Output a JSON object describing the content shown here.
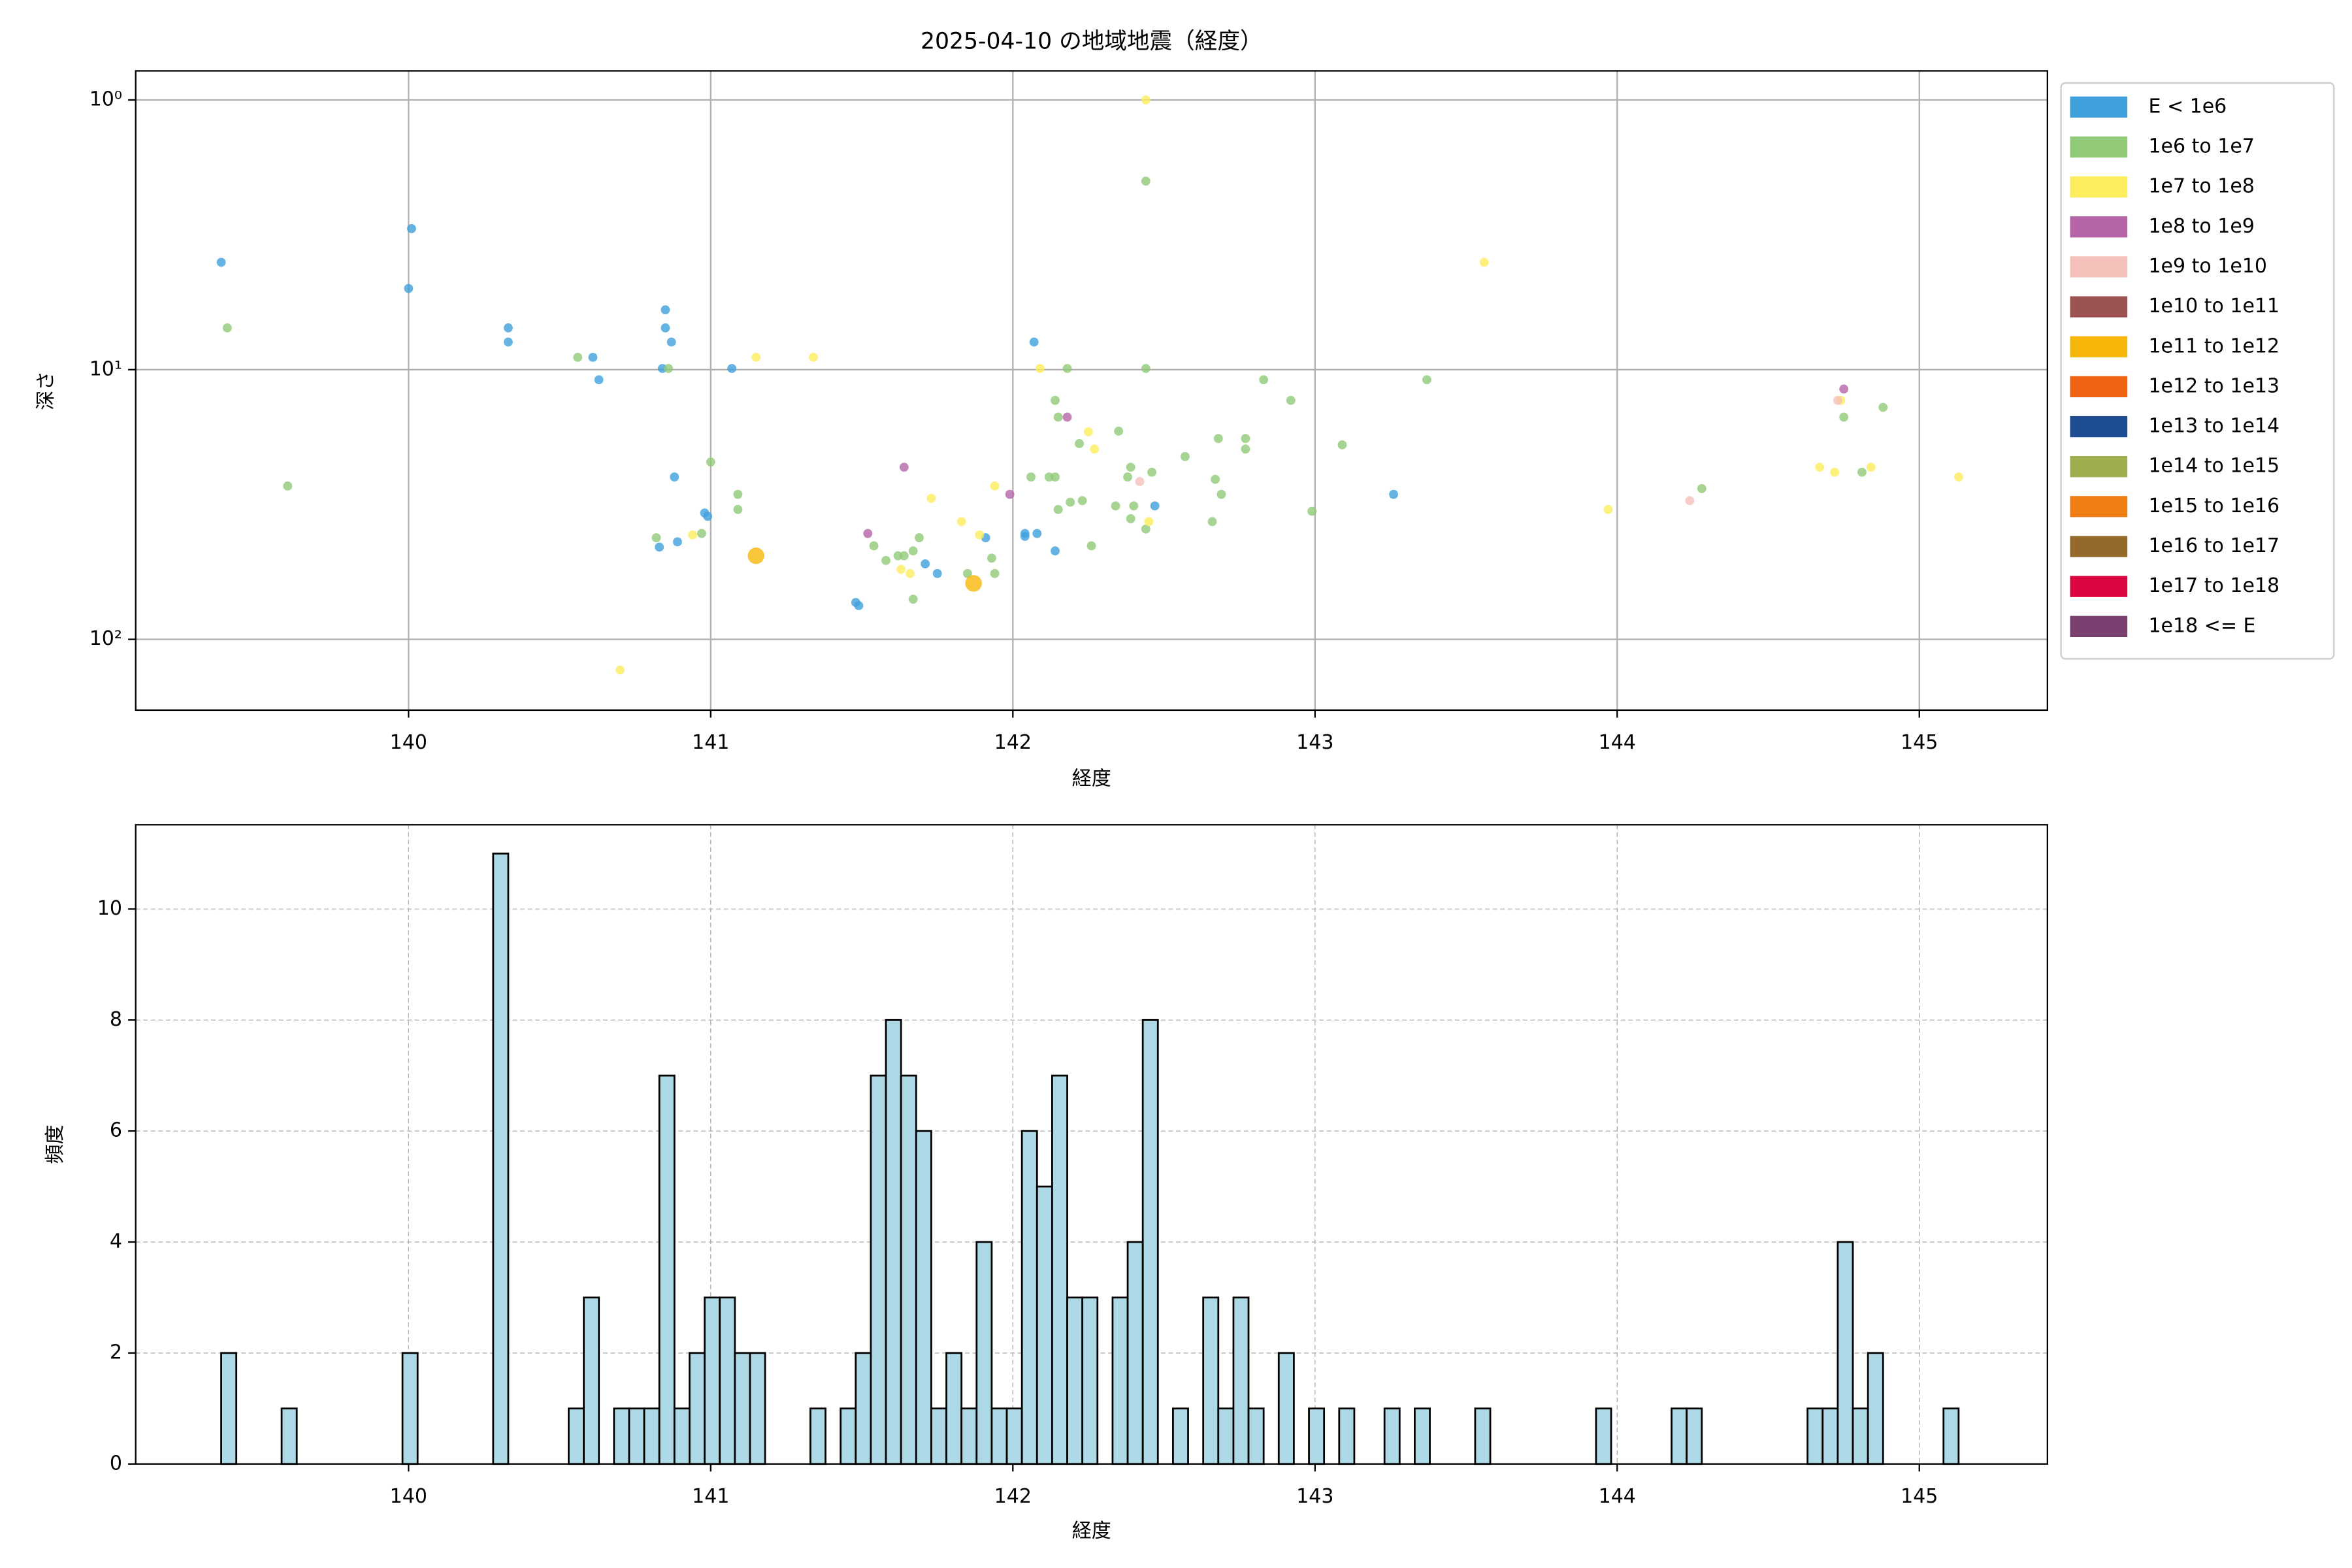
{
  "chart_data": [
    {
      "type": "scatter",
      "title": "2025-04-10 の地域地震（経度）",
      "x_label": "経度",
      "y_label": "深さ",
      "xlim": [
        139.097,
        145.424
      ],
      "xticks": [
        140,
        141,
        142,
        143,
        144,
        145
      ],
      "ylim": [
        0.78,
        183
      ],
      "y_inverted": true,
      "log_y": true,
      "yticks": [
        {
          "value": 1,
          "label": "10⁰"
        },
        {
          "value": 10,
          "label": "10¹"
        },
        {
          "value": 100,
          "label": "10²"
        }
      ],
      "grid": true,
      "legend": "outside-right",
      "series": [
        {
          "name": "E < 1e6",
          "color": "#3fa0dc",
          "marker_size": 3,
          "x": [
            139.38,
            140.01,
            140.0,
            140.33,
            140.33,
            140.61,
            140.63,
            140.85,
            140.85,
            140.87,
            140.84,
            141.07,
            140.88,
            140.83,
            140.89,
            140.98,
            140.99,
            141.48,
            141.49,
            141.71,
            141.75,
            141.91,
            142.04,
            142.04,
            142.08,
            142.07,
            142.14,
            142.47,
            143.26
          ],
          "values": [
            4.0,
            3.0,
            5.0,
            7.0,
            7.9,
            9.0,
            10.9,
            6.0,
            7.0,
            7.9,
            9.9,
            9.9,
            25,
            45.5,
            43.5,
            34,
            35,
            73,
            75,
            52.5,
            57,
            42,
            40.5,
            41.5,
            40.5,
            7.9,
            47,
            32,
            29
          ]
        },
        {
          "name": "1e6 to 1e7",
          "color": "#90c978",
          "marker_size": 3,
          "x": [
            139.4,
            139.6,
            140.56,
            140.86,
            140.82,
            140.97,
            141.0,
            141.09,
            141.09,
            141.54,
            141.58,
            141.62,
            141.64,
            141.69,
            141.67,
            141.67,
            141.85,
            141.93,
            141.94,
            142.06,
            142.12,
            142.14,
            142.14,
            142.15,
            142.18,
            142.15,
            142.19,
            142.23,
            142.22,
            142.26,
            142.35,
            142.38,
            142.34,
            142.39,
            142.4,
            142.39,
            142.44,
            142.44,
            142.44,
            142.46,
            142.57,
            142.68,
            142.66,
            142.67,
            142.69,
            142.77,
            142.77,
            142.83,
            142.92,
            142.99,
            143.09,
            143.37,
            144.28,
            144.75,
            144.88,
            144.81
          ],
          "values": [
            7.0,
            27,
            9.0,
            9.9,
            42,
            40.5,
            22,
            29,
            33,
            45,
            51,
            49,
            49,
            42,
            47,
            71,
            57,
            50,
            57,
            25,
            25,
            25,
            13,
            15,
            9.9,
            33,
            31,
            30.6,
            18.8,
            45,
            16.9,
            25,
            32,
            23,
            32,
            35.7,
            39,
            2.0,
            9.9,
            24,
            21,
            18,
            36.6,
            25.5,
            29,
            18,
            19.7,
            10.9,
            13,
            33.5,
            19,
            10.9,
            27.6,
            15,
            13.8,
            24
          ]
        },
        {
          "name": "1e7 to 1e8",
          "color": "#fdec5c",
          "marker_size": 3,
          "x": [
            142.44,
            143.56,
            141.15,
            141.34,
            142.09,
            142.25,
            142.27,
            141.94,
            141.73,
            141.83,
            141.89,
            141.66,
            141.63,
            140.7,
            140.94,
            142.45,
            143.97,
            144.67,
            144.72,
            144.84,
            144.74,
            145.13
          ],
          "values": [
            1.0,
            4.0,
            9.0,
            9.0,
            9.9,
            17,
            19.7,
            27,
            30,
            36.6,
            41,
            57,
            55,
            130,
            41,
            36.6,
            33,
            23,
            24,
            23,
            13,
            25
          ]
        },
        {
          "name": "1e8 to 1e9",
          "color": "#b565a7",
          "marker_size": 3,
          "x": [
            144.75,
            142.18,
            141.64,
            141.99,
            141.52
          ],
          "values": [
            11.8,
            15,
            23,
            29,
            40.5
          ]
        },
        {
          "name": "1e9 to 1e10",
          "color": "#f5c1bb",
          "marker_size": 3,
          "x": [
            144.73,
            142.42,
            144.24
          ],
          "values": [
            13,
            26,
            30.6
          ]
        },
        {
          "name": "1e10 to 1e11",
          "color": "#9c5351",
          "marker_size": 3,
          "x": [],
          "values": []
        },
        {
          "name": "1e11 to 1e12",
          "color": "#f6b60a",
          "marker_size": 5.5,
          "x": [
            141.15,
            141.87
          ],
          "values": [
            49,
            62
          ]
        },
        {
          "name": "1e12 to 1e13",
          "color": "#ee6311",
          "marker_size": 3,
          "x": [],
          "values": []
        },
        {
          "name": "1e13 to 1e14",
          "color": "#1f4d94",
          "marker_size": 3,
          "x": [],
          "values": []
        },
        {
          "name": "1e14 to 1e15",
          "color": "#9fad4f",
          "marker_size": 3,
          "x": [],
          "values": []
        },
        {
          "name": "1e15 to 1e16",
          "color": "#ef7d12",
          "marker_size": 3,
          "x": [],
          "values": []
        },
        {
          "name": "1e16 to 1e17",
          "color": "#946a2b",
          "marker_size": 3,
          "x": [],
          "values": []
        },
        {
          "name": "1e17 to 1e18",
          "color": "#dc0640",
          "marker_size": 3,
          "x": [],
          "values": []
        },
        {
          "name": "1e18 <= E",
          "color": "#7a406f",
          "marker_size": 3,
          "x": [],
          "values": []
        }
      ]
    },
    {
      "type": "histogram",
      "x_label": "経度",
      "y_label": "頻度",
      "color": "#add8e6",
      "edgecolor": "#000000",
      "xlim": [
        139.097,
        145.424
      ],
      "xticks": [
        140,
        141,
        142,
        143,
        144,
        145
      ],
      "ylim": [
        0,
        11.52
      ],
      "yticks": [
        0,
        2,
        4,
        6,
        8,
        10
      ],
      "grid": true,
      "grid_style": "dashed",
      "bins": [
        139.38,
        139.43,
        139.48,
        139.53,
        139.58,
        139.63,
        139.68,
        139.73,
        139.78,
        139.83,
        139.88,
        139.93,
        139.98,
        140.03,
        140.08,
        140.13,
        140.18,
        140.23,
        140.28,
        140.33,
        140.38,
        140.43,
        140.48,
        140.53,
        140.58,
        140.63,
        140.68,
        140.73,
        140.78,
        140.83,
        140.88,
        140.93,
        140.98,
        141.03,
        141.08,
        141.13,
        141.18,
        141.23,
        141.28,
        141.33,
        141.38,
        141.43,
        141.48,
        141.53,
        141.58,
        141.63,
        141.68,
        141.73,
        141.78,
        141.83,
        141.88,
        141.93,
        141.98,
        142.03,
        142.08,
        142.13,
        142.18,
        142.23,
        142.28,
        142.33,
        142.38,
        142.43,
        142.48,
        142.53,
        142.58,
        142.63,
        142.68,
        142.73,
        142.78,
        142.83,
        142.88,
        142.93,
        142.98,
        143.03,
        143.08,
        143.13,
        143.18,
        143.23,
        143.28,
        143.33,
        143.38,
        143.43,
        143.48,
        143.53,
        143.58,
        143.63,
        143.68,
        143.73,
        143.78,
        143.83,
        143.88,
        143.93,
        143.98,
        144.03,
        144.08,
        144.13,
        144.18,
        144.23,
        144.28,
        144.33,
        144.38,
        144.43,
        144.48,
        144.53,
        144.58,
        144.63,
        144.68,
        144.73,
        144.78,
        144.83,
        144.88,
        144.93,
        144.98,
        145.03,
        145.08,
        145.13
      ],
      "values": [
        2,
        0,
        0,
        0,
        1,
        0,
        0,
        0,
        0,
        0,
        0,
        0,
        2,
        0,
        0,
        0,
        0,
        0,
        11,
        0,
        0,
        0,
        0,
        1,
        3,
        0,
        1,
        1,
        1,
        7,
        1,
        2,
        3,
        3,
        2,
        2,
        0,
        0,
        0,
        1,
        0,
        1,
        2,
        7,
        8,
        7,
        6,
        1,
        2,
        1,
        4,
        1,
        1,
        6,
        5,
        7,
        3,
        3,
        0,
        3,
        4,
        8,
        0,
        1,
        0,
        3,
        1,
        3,
        1,
        0,
        2,
        0,
        1,
        0,
        1,
        0,
        0,
        1,
        0,
        1,
        0,
        0,
        0,
        1,
        0,
        0,
        0,
        0,
        0,
        0,
        0,
        1,
        0,
        0,
        0,
        0,
        1,
        1,
        0,
        0,
        0,
        0,
        0,
        0,
        0,
        1,
        1,
        4,
        1,
        2,
        0,
        0,
        0,
        0,
        1
      ]
    }
  ]
}
